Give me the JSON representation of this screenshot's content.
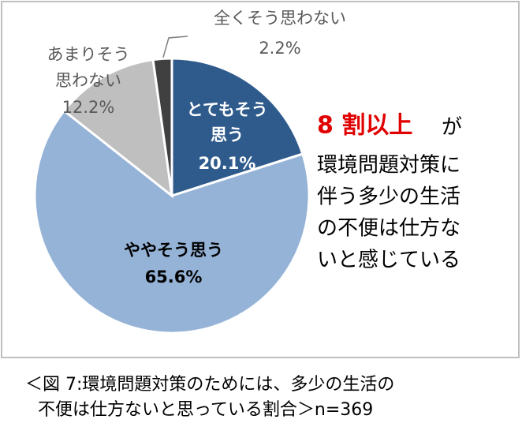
{
  "chart_data": {
    "type": "pie",
    "categories": [
      [
        "とてもそう",
        "思う"
      ],
      [
        "ややそう思う"
      ],
      [
        "あまりそう",
        "思わない"
      ],
      [
        "全くそう思わない"
      ]
    ],
    "values": [
      20.1,
      65.6,
      12.2,
      2.2
    ],
    "value_labels": [
      "20.1%",
      "65.6%",
      "12.2%",
      "2.2%"
    ],
    "colors": [
      "#2f5b8c",
      "#95b3d7",
      "#bfbfbf",
      "#404040"
    ],
    "annotation": {
      "highlight": "8 割以上",
      "text": "が",
      "lines": [
        "環境問題対策に",
        "伴う多少の生活",
        "の不便は仕方な",
        "いと感じている"
      ]
    }
  },
  "caption": [
    "＜図 7:環境問題対策のためには、多少の生活の",
    "不便は仕方ないと思っている割合＞n=369"
  ]
}
